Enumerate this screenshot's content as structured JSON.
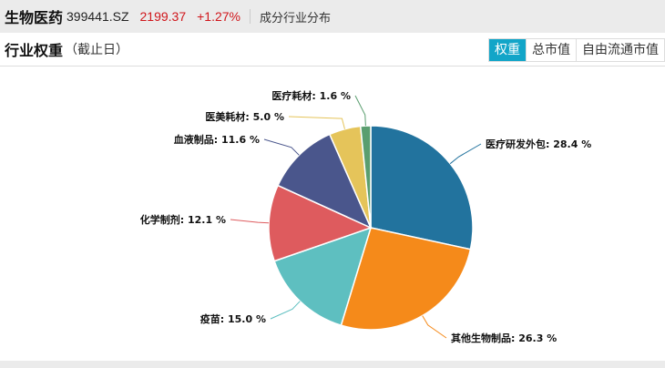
{
  "header": {
    "name": "生物医药",
    "code": "399441.SZ",
    "price": "2199.37",
    "change": "+1.27%",
    "subtitle": "成分行业分布"
  },
  "section": {
    "title": "行业权重",
    "note": "（截止日）",
    "tabs": [
      {
        "label": "权重",
        "active": true
      },
      {
        "label": "总市值",
        "active": false
      },
      {
        "label": "自由流通市值",
        "active": false
      }
    ]
  },
  "chart_data": {
    "type": "pie",
    "start": "top",
    "direction": "clockwise",
    "slices": [
      {
        "label": "医疗研发外包",
        "value": 28.4,
        "color": "#22739e"
      },
      {
        "label": "其他生物制品",
        "value": 26.3,
        "color": "#f58a1a"
      },
      {
        "label": "疫苗",
        "value": 15.0,
        "color": "#5ebfc0"
      },
      {
        "label": "化学制剂",
        "value": 12.1,
        "color": "#de5b5e"
      },
      {
        "label": "血液制品",
        "value": 11.6,
        "color": "#4a568c"
      },
      {
        "label": "医美耗材",
        "value": 5.0,
        "color": "#e5c45a"
      },
      {
        "label": "医疗耗材",
        "value": 1.6,
        "color": "#5a9e6f"
      }
    ]
  }
}
